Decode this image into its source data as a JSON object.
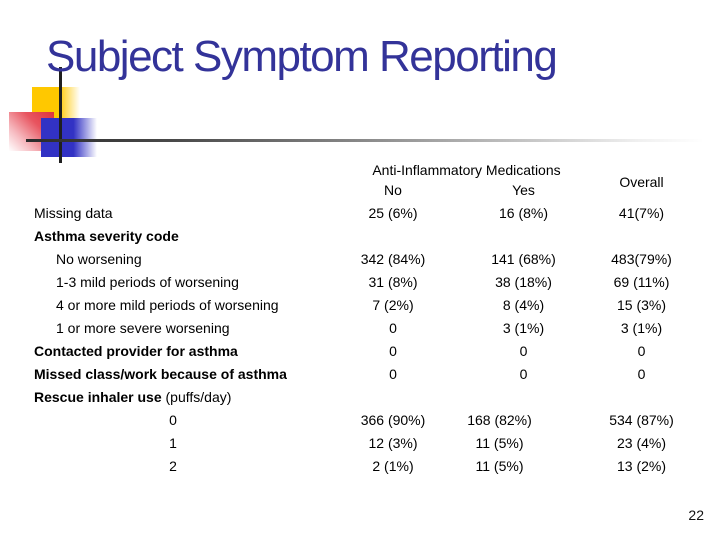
{
  "slide": {
    "title": "Subject Symptom Reporting",
    "page_number": "22"
  },
  "colors": {
    "title_text": "#333399",
    "decor_yellow": "#FFC800",
    "decor_blue": "#3232C4",
    "decor_red": "#DF323C",
    "line_dark": "#1F1F1F",
    "table_text": "#000000"
  },
  "table": {
    "header": {
      "group_label": "Anti-Inflammatory Medications",
      "col_no": "No",
      "col_yes": "Yes",
      "col_overall": "Overall"
    },
    "rows": [
      {
        "label": "Missing data",
        "style": "plain",
        "no": "25 (6%)",
        "yes": "16 (8%)",
        "overall": "41(7%)"
      },
      {
        "label": "Asthma severity code",
        "style": "bold",
        "no": "",
        "yes": "",
        "overall": ""
      },
      {
        "label": "No worsening",
        "style": "indent",
        "no": "342 (84%)",
        "yes": "141 (68%)",
        "overall": "483(79%)"
      },
      {
        "label": "1-3 mild periods of worsening",
        "style": "indent",
        "no": "31 (8%)",
        "yes": "38 (18%)",
        "overall": "69 (11%)"
      },
      {
        "label": "4 or more mild periods of worsening",
        "style": "indent",
        "no": "7 (2%)",
        "yes": "8 (4%)",
        "overall": "15 (3%)"
      },
      {
        "label": "1 or more severe worsening",
        "style": "indent",
        "no": "0",
        "yes": "3 (1%)",
        "overall": "3 (1%)"
      },
      {
        "label": "Contacted provider for asthma",
        "style": "bold",
        "no": "0",
        "yes": "0",
        "overall": "0"
      },
      {
        "label": "Missed class/work because of asthma",
        "style": "bold",
        "no": "0",
        "yes": "0",
        "overall": "0"
      },
      {
        "label": "Rescue inhaler use",
        "suffix": " (puffs/day)",
        "style": "bold",
        "no": "",
        "yes": "",
        "overall": ""
      },
      {
        "label": "0",
        "style": "center",
        "no": "366 (90%)",
        "yes": "168 (82%)",
        "overall": "534 (87%)",
        "yes_shift": true
      },
      {
        "label": "1",
        "style": "center",
        "no": "12 (3%)",
        "yes": "11 (5%)",
        "overall": "23 (4%)",
        "yes_shift": true
      },
      {
        "label": "2",
        "style": "center",
        "no": "2 (1%)",
        "yes": "11 (5%)",
        "overall": "13 (2%)",
        "yes_shift": true
      }
    ]
  }
}
